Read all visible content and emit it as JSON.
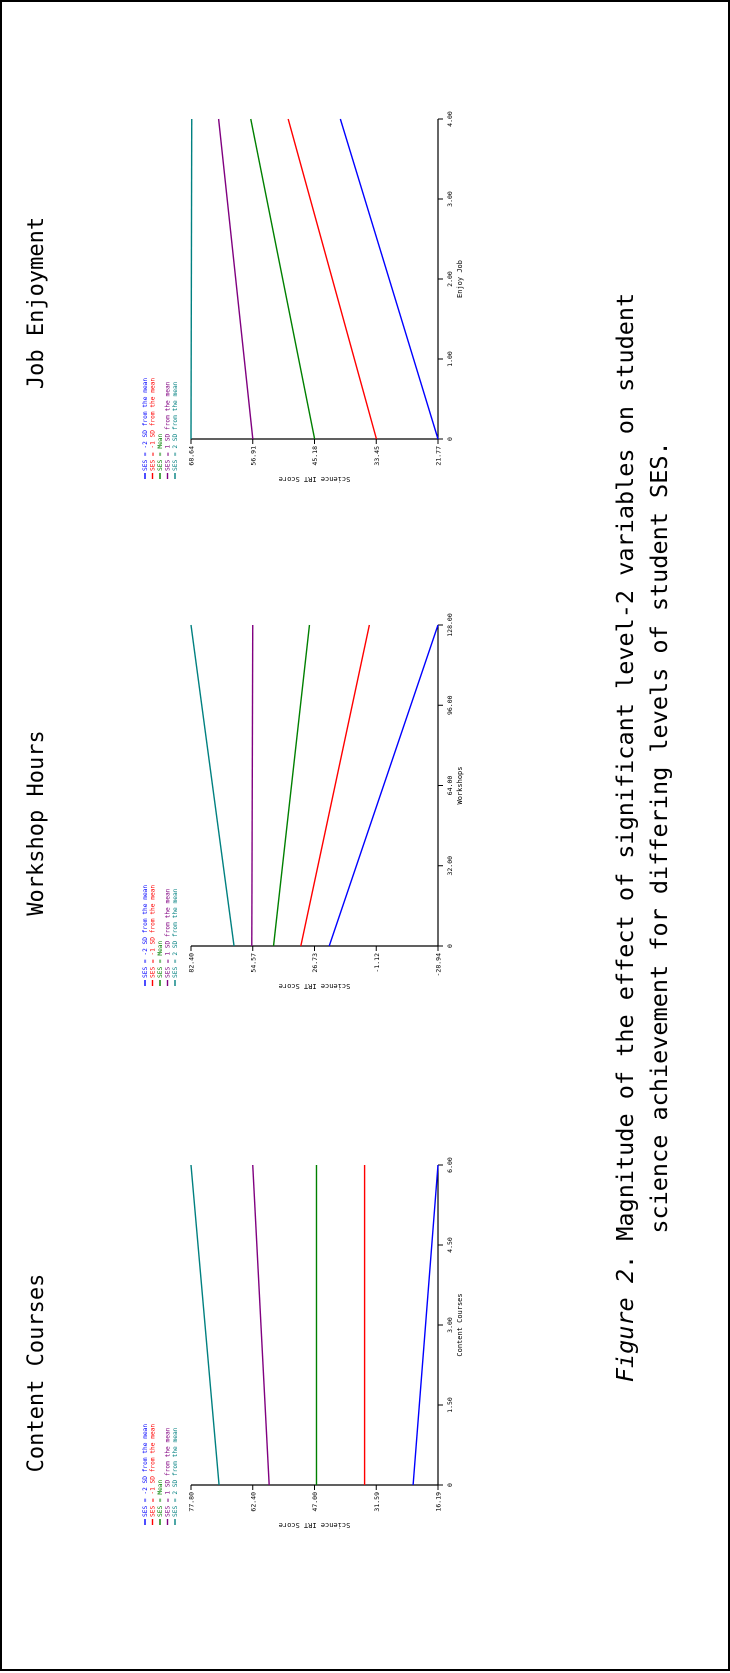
{
  "caption": {
    "figure_label": "Figure 2",
    "line1_rest": ". Magnitude of the effect of significant level-2 variables on student",
    "line2": "science achievement for differing levels of student SES."
  },
  "series_colors": [
    "#0000ff",
    "#ff0000",
    "#008000",
    "#800080",
    "#008080"
  ],
  "chart_data": [
    {
      "type": "line",
      "title": "Content Courses",
      "xlabel": "Content Courses",
      "ylabel": "Science IRT Score",
      "x_ticks": [
        "0",
        "1.50",
        "3.00",
        "4.50",
        "6.00"
      ],
      "y_ticks": [
        "16.19",
        "31.59",
        "47.00",
        "62.40",
        "77.80"
      ],
      "xlim": [
        0,
        6
      ],
      "ylim": [
        16.19,
        77.8
      ],
      "x": [
        0,
        6
      ],
      "series": [
        {
          "name": "SES = -2 SD from the mean",
          "values": [
            22.4,
            16.19
          ]
        },
        {
          "name": "SES = -1 SD from the mean",
          "values": [
            34.5,
            34.5
          ]
        },
        {
          "name": "SES = Mean",
          "values": [
            46.5,
            46.5
          ]
        },
        {
          "name": "SES = 1 SD from the mean",
          "values": [
            58.3,
            62.4
          ]
        },
        {
          "name": "SES = 2 SD from the mean",
          "values": [
            70.8,
            77.8
          ]
        }
      ]
    },
    {
      "type": "line",
      "title": "Workshop Hours",
      "xlabel": "Workshops",
      "ylabel": "Science IRT Score",
      "x_ticks": [
        "0",
        "32.00",
        "64.00",
        "96.00",
        "128.00"
      ],
      "y_ticks": [
        "-28.94",
        "-1.12",
        "26.73",
        "54.57",
        "82.40"
      ],
      "xlim": [
        0,
        128
      ],
      "ylim": [
        -28.94,
        82.4
      ],
      "x": [
        0,
        128
      ],
      "series": [
        {
          "name": "SES = -2 SD from the mean",
          "values": [
            20.1,
            -28.94
          ]
        },
        {
          "name": "SES = -1 SD from the mean",
          "values": [
            32.9,
            2.0
          ]
        },
        {
          "name": "SES = Mean",
          "values": [
            45.2,
            29.0
          ]
        },
        {
          "name": "SES = 1 SD from the mean",
          "values": [
            55.0,
            54.57
          ]
        },
        {
          "name": "SES = 2 SD from the mean",
          "values": [
            63.0,
            82.4
          ]
        }
      ]
    },
    {
      "type": "line",
      "title": "Job Enjoyment",
      "xlabel": "Enjoy Job",
      "ylabel": "Science IRT Score",
      "x_ticks": [
        "0",
        "1.00",
        "2.00",
        "3.00",
        "4.00"
      ],
      "y_ticks": [
        "21.77",
        "33.45",
        "45.18",
        "56.91",
        "68.64"
      ],
      "xlim": [
        0,
        4
      ],
      "ylim": [
        21.77,
        68.64
      ],
      "x": [
        0,
        4
      ],
      "series": [
        {
          "name": "SES = -2 SD from the mean",
          "values": [
            21.77,
            40.3
          ]
        },
        {
          "name": "SES = -1 SD from the mean",
          "values": [
            33.45,
            50.2
          ]
        },
        {
          "name": "SES = Mean",
          "values": [
            45.18,
            57.3
          ]
        },
        {
          "name": "SES = 1 SD from the mean",
          "values": [
            56.91,
            63.4
          ]
        },
        {
          "name": "SES = 2 SD from the mean",
          "values": [
            68.64,
            68.5
          ]
        }
      ]
    }
  ]
}
